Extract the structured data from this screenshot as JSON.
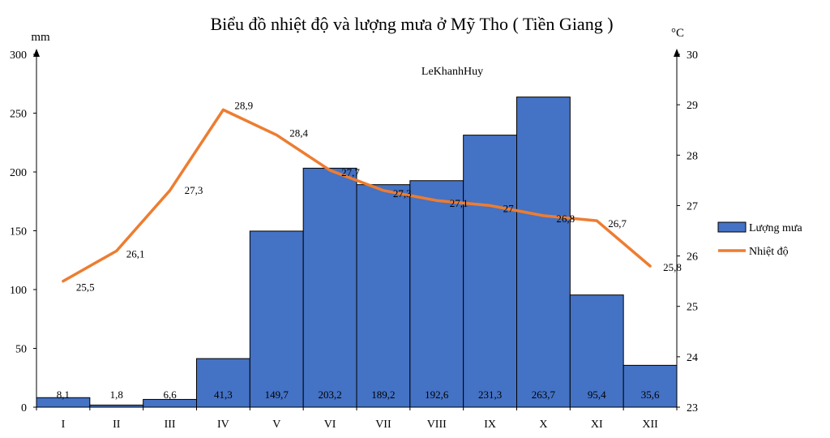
{
  "chart_data": {
    "type": "bar+line",
    "title": "Biểu đồ nhiệt độ và lượng mưa ở Mỹ Tho ( Tiền Giang )",
    "watermark": "LeKhanhHuy",
    "categories": [
      "I",
      "II",
      "III",
      "IV",
      "V",
      "VI",
      "VII",
      "VIII",
      "IX",
      "X",
      "XI",
      "XII"
    ],
    "rain": {
      "name": "Lượng mưa",
      "unit": "mm",
      "values": [
        8.1,
        1.8,
        6.6,
        41.3,
        149.7,
        203.2,
        189.2,
        192.6,
        231.3,
        263.7,
        95.4,
        35.6
      ],
      "labels": [
        "8,1",
        "1,8",
        "6,6",
        "41,3",
        "149,7",
        "203,2",
        "189,2",
        "192,6",
        "231,3",
        "263,7",
        "95,4",
        "35,6"
      ],
      "axis_ticks": [
        "0",
        "50",
        "100",
        "150",
        "200",
        "250",
        "300"
      ],
      "ylim": [
        0,
        300
      ],
      "color": "#4472C4"
    },
    "temp": {
      "name": "Nhiệt độ",
      "unit": "°C",
      "values": [
        25.5,
        26.1,
        27.3,
        28.9,
        28.4,
        27.7,
        27.3,
        27.1,
        27.0,
        26.8,
        26.7,
        25.8
      ],
      "labels": [
        "25,5",
        "26,1",
        "27,3",
        "28,9",
        "28,4",
        "27,7",
        "27,3",
        "27,1",
        "27",
        "26,8",
        "26,7",
        "25,8"
      ],
      "axis_ticks": [
        "23",
        "24",
        "25",
        "26",
        "27",
        "28",
        "29",
        "30"
      ],
      "ylim": [
        23,
        30
      ],
      "color": "#ED7D31"
    },
    "legend_position": "right",
    "grid": false
  }
}
